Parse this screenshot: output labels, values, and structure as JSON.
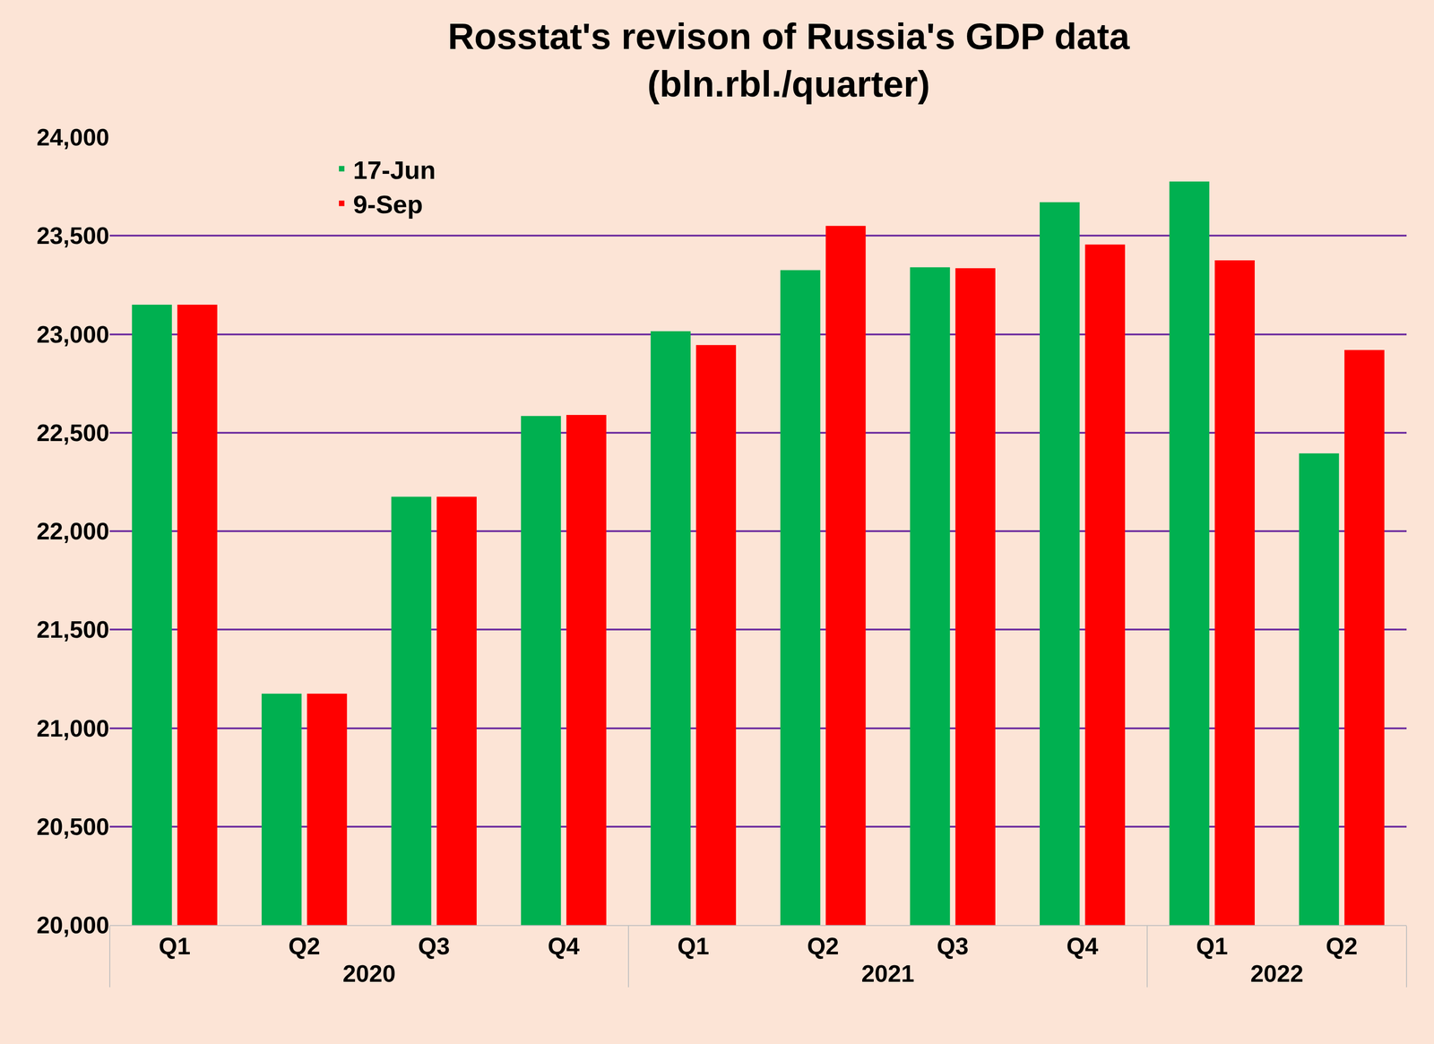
{
  "chart_data": {
    "type": "bar",
    "title": "Rosstat's revison of Russia's GDP data\n(bln.rbl./quarter)",
    "categories": [
      "Q1",
      "Q2",
      "Q3",
      "Q4",
      "Q1",
      "Q2",
      "Q3",
      "Q4",
      "Q1",
      "Q2"
    ],
    "category_groups": [
      "2020",
      "2020",
      "2020",
      "2020",
      "2021",
      "2021",
      "2021",
      "2021",
      "2022",
      "2022"
    ],
    "series": [
      {
        "name": "17-Jun",
        "color": "#00B050",
        "values": [
          23150,
          21175,
          22175,
          22585,
          23015,
          23325,
          23340,
          23670,
          23775,
          22395
        ]
      },
      {
        "name": "9-Sep",
        "color": "#FF0000",
        "values": [
          23150,
          21175,
          22175,
          22590,
          22945,
          23550,
          23335,
          23455,
          23375,
          22920
        ]
      }
    ],
    "ylim": [
      20000,
      24000
    ],
    "yticks": [
      {
        "value": 20000,
        "label": "20,000"
      },
      {
        "value": 20500,
        "label": "20,500"
      },
      {
        "value": 21000,
        "label": "21,000"
      },
      {
        "value": 21500,
        "label": "21,500"
      },
      {
        "value": 22000,
        "label": "22,000"
      },
      {
        "value": 22500,
        "label": "22,500"
      },
      {
        "value": 23000,
        "label": "23,000"
      },
      {
        "value": 23500,
        "label": "23,500"
      },
      {
        "value": 24000,
        "label": "24,000"
      }
    ],
    "grid": true,
    "legend": "upper left"
  }
}
